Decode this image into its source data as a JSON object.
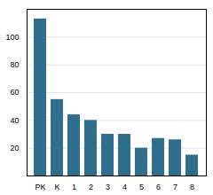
{
  "chart_data": {
    "type": "bar",
    "categories": [
      "PK",
      "K",
      "1",
      "2",
      "3",
      "4",
      "5",
      "6",
      "7",
      "8"
    ],
    "values": [
      113,
      55,
      44,
      40,
      30,
      30,
      20,
      27,
      26,
      15
    ],
    "color": "#2e6f8e",
    "ylim": [
      0,
      120
    ],
    "yticks": [
      20,
      40,
      60,
      80,
      100
    ],
    "grid": true
  }
}
